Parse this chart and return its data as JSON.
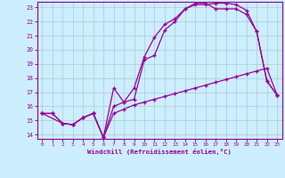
{
  "bg_color": "#cceeff",
  "line_color": "#990099",
  "grid_color": "#aacccc",
  "xlabel": "Windchill (Refroidissement éolien,°C)",
  "xmin": 0,
  "xmax": 23,
  "ymin": 14,
  "ymax": 23,
  "line1_x": [
    0,
    1,
    2,
    3,
    4,
    5,
    6,
    7,
    8,
    9,
    10,
    11,
    12,
    13,
    14,
    15,
    16,
    17,
    18,
    19,
    20,
    21,
    22,
    23
  ],
  "line1_y": [
    15.5,
    15.5,
    14.8,
    14.7,
    15.2,
    15.5,
    13.8,
    15.5,
    15.8,
    16.1,
    16.3,
    16.5,
    16.7,
    16.9,
    17.1,
    17.3,
    17.5,
    17.7,
    17.9,
    18.1,
    18.3,
    18.5,
    18.7,
    16.8
  ],
  "line2_x": [
    0,
    1,
    2,
    3,
    4,
    5,
    6,
    7,
    8,
    9,
    10,
    11,
    12,
    13,
    14,
    15,
    16,
    17,
    18,
    19,
    20,
    21,
    22,
    23
  ],
  "line2_y": [
    15.5,
    15.5,
    14.8,
    14.7,
    15.2,
    15.5,
    13.8,
    16.0,
    16.3,
    17.3,
    19.5,
    20.9,
    21.8,
    22.2,
    22.9,
    23.2,
    23.2,
    23.3,
    23.3,
    23.2,
    22.8,
    21.3,
    17.8,
    16.8
  ],
  "line3_x": [
    0,
    2,
    3,
    4,
    5,
    6,
    7,
    8,
    9,
    10,
    11,
    12,
    13,
    14,
    15,
    16,
    17,
    18,
    19,
    20,
    21,
    22,
    23
  ],
  "line3_y": [
    15.5,
    14.8,
    14.7,
    15.2,
    15.5,
    13.8,
    17.3,
    16.3,
    16.5,
    19.3,
    19.6,
    21.4,
    22.0,
    22.9,
    23.3,
    23.3,
    22.9,
    22.9,
    22.9,
    22.5,
    21.3,
    17.8,
    16.8
  ],
  "yticks": [
    14,
    15,
    16,
    17,
    18,
    19,
    20,
    21,
    22,
    23
  ],
  "xticks": [
    0,
    1,
    2,
    3,
    4,
    5,
    6,
    7,
    8,
    9,
    10,
    11,
    12,
    13,
    14,
    15,
    16,
    17,
    18,
    19,
    20,
    21,
    22,
    23
  ]
}
